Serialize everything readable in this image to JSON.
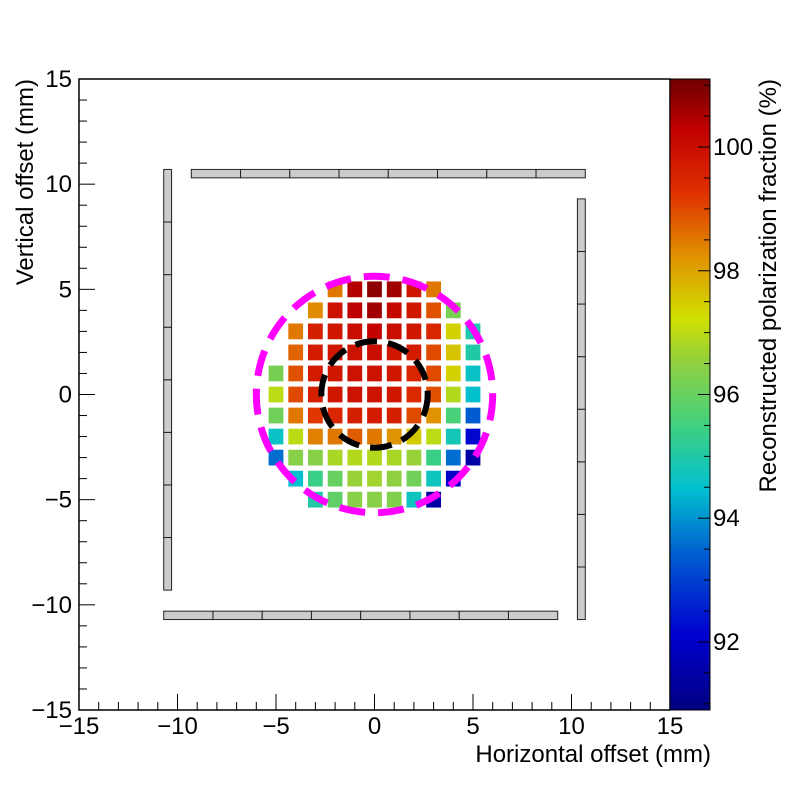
{
  "chart_data": {
    "type": "heatmap",
    "xlabel": "Horizontal offset (mm)",
    "ylabel": "Vertical offset (mm)",
    "colorbar_label": "Reconstructed polarization fraction (%)",
    "xlim": [
      -15,
      15
    ],
    "ylim": [
      -15,
      15
    ],
    "x_ticks": [
      -15,
      -10,
      -5,
      0,
      5,
      10,
      15
    ],
    "y_ticks": [
      -15,
      -10,
      -5,
      0,
      5,
      10,
      15
    ],
    "x_tick_labels": [
      "−15",
      "−10",
      "−5",
      "0",
      "5",
      "10",
      "15"
    ],
    "y_tick_labels": [
      "−15",
      "−10",
      "−5",
      "0",
      "5",
      "10",
      "15"
    ],
    "zlim": [
      90.9,
      101.1
    ],
    "z_ticks": [
      92,
      94,
      96,
      98,
      100
    ],
    "z_tick_labels": [
      "92",
      "94",
      "96",
      "98",
      "100"
    ],
    "colormap": "rainbow (dark blue to dark red)",
    "cell_pitch_mm": 1,
    "cell_size_mm": 0.75,
    "grid_x": [
      -5,
      -4,
      -3,
      -2,
      -1,
      0,
      1,
      2,
      3,
      4,
      5
    ],
    "grid_y": [
      5,
      4,
      3,
      2,
      1,
      0,
      -1,
      -2,
      -3,
      -4,
      -5
    ],
    "cells": [
      [
        null,
        null,
        null,
        98.5,
        100.4,
        100.8,
        100.6,
        99.8,
        98.5,
        null,
        null
      ],
      [
        null,
        null,
        98.3,
        99.9,
        100.3,
        100.6,
        100.1,
        99.8,
        98.9,
        96.2,
        null
      ],
      [
        null,
        98.5,
        99.6,
        99.8,
        100.0,
        100.2,
        100.0,
        99.8,
        99.5,
        97.4,
        94.9
      ],
      [
        null,
        98.7,
        99.7,
        99.8,
        99.9,
        100.0,
        99.8,
        99.7,
        99.0,
        97.6,
        95.0
      ],
      [
        96.2,
        98.9,
        99.7,
        99.8,
        99.9,
        99.9,
        99.8,
        99.5,
        99.0,
        97.4,
        94.6
      ],
      [
        97.0,
        99.0,
        99.6,
        99.8,
        99.9,
        99.9,
        99.8,
        99.4,
        98.9,
        96.9,
        94.5
      ],
      [
        96.1,
        98.5,
        99.2,
        99.5,
        99.6,
        99.7,
        99.6,
        99.0,
        98.2,
        95.6,
        93.4
      ],
      [
        94.6,
        97.0,
        98.4,
        98.5,
        98.8,
        98.5,
        98.2,
        97.5,
        97.0,
        94.8,
        92.2
      ],
      [
        93.6,
        96.4,
        96.4,
        96.8,
        96.9,
        96.9,
        96.8,
        96.6,
        95.4,
        93.6,
        91.5
      ],
      [
        null,
        94.5,
        95.4,
        96.0,
        96.6,
        96.7,
        96.5,
        96.1,
        94.7,
        92.0,
        null
      ],
      [
        null,
        null,
        95.0,
        95.9,
        96.4,
        96.4,
        96.3,
        94.7,
        91.5,
        null,
        null
      ]
    ],
    "detector_bars": {
      "color": "#cccccc",
      "top": {
        "x_from": -9.3,
        "x_to": 10.7,
        "y_from": 10.3,
        "y_to": 10.7,
        "segments": 8
      },
      "bottom": {
        "x_from": -10.7,
        "x_to": 9.3,
        "y_from": -10.7,
        "y_to": -10.3,
        "segments": 8
      },
      "left": {
        "x_from": -10.7,
        "x_to": -10.3,
        "y_from": -9.3,
        "y_to": 10.7,
        "segments": 8
      },
      "right": {
        "x_from": 10.3,
        "x_to": 10.7,
        "y_from": -10.7,
        "y_to": 9.3,
        "segments": 8
      }
    },
    "circles": [
      {
        "name": "outer",
        "cx": 0,
        "cy": 0,
        "r": 6.0,
        "color": "#ff00ff",
        "style": "dashed"
      },
      {
        "name": "inner",
        "cx": 0,
        "cy": 0,
        "r": 2.7,
        "color": "#000000",
        "style": "dashed"
      }
    ]
  }
}
